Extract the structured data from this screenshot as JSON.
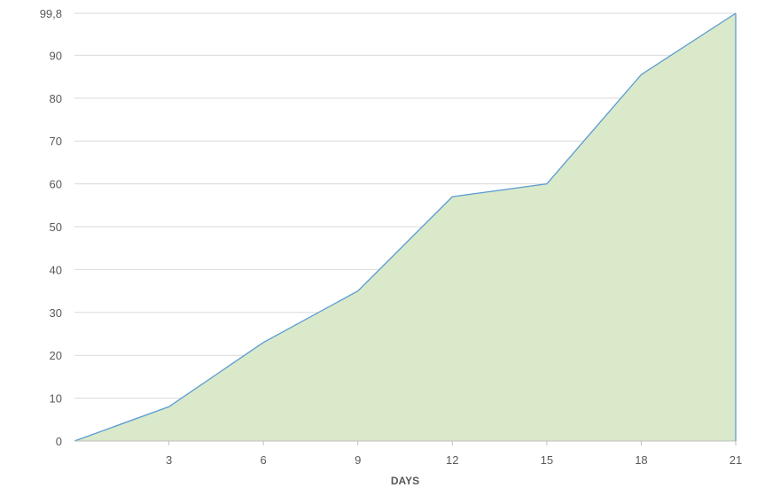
{
  "chart_data": {
    "type": "area",
    "title": "",
    "xlabel": "DAYS",
    "ylabel": "",
    "x": [
      0,
      3,
      6,
      9,
      12,
      15,
      18,
      21
    ],
    "series": [
      {
        "values": [
          0,
          8,
          23,
          35,
          57,
          60,
          85.5,
          99.8
        ]
      }
    ],
    "xlim": [
      0,
      21
    ],
    "ylim": [
      0,
      99.8
    ],
    "x_ticks": [
      "3",
      "6",
      "9",
      "12",
      "15",
      "18",
      "21"
    ],
    "y_ticks": [
      {
        "value": 0,
        "label": "0"
      },
      {
        "value": 10,
        "label": "10"
      },
      {
        "value": 20,
        "label": "20"
      },
      {
        "value": 30,
        "label": "30"
      },
      {
        "value": 40,
        "label": "40"
      },
      {
        "value": 50,
        "label": "50"
      },
      {
        "value": 60,
        "label": "60"
      },
      {
        "value": 70,
        "label": "70"
      },
      {
        "value": 80,
        "label": "80"
      },
      {
        "value": 90,
        "label": "90"
      },
      {
        "value": 99.8,
        "label": "99,8"
      }
    ],
    "grid": true,
    "legend": "none",
    "colors": {
      "fill": "#d9e9c9",
      "line": "#5b9bd5",
      "grid": "#d9d9d9",
      "axis": "#bfbfbf"
    }
  }
}
